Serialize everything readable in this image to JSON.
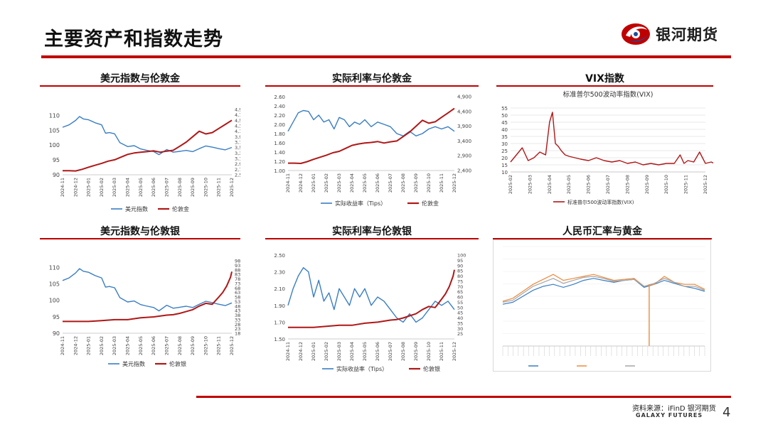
{
  "page": {
    "title": "主要资产和指数走势",
    "logo_text": "银河期货",
    "source": "资料来源：iFinD 银河期货",
    "company_en": "GALAXY FUTURES",
    "page_number": "4"
  },
  "colors": {
    "accent_red": "#c00000",
    "series_blue": "#3a7ec2",
    "series_red": "#b01717",
    "series_orange": "#ec8a3c",
    "series_gray": "#a6a6a6",
    "logo_blue": "#1d4d9c"
  },
  "icons": {
    "logo": "galaxy-futures-logo-icon"
  },
  "chart_data": [
    {
      "id": "c1",
      "type": "line",
      "title": "美元指数与伦敦金",
      "x_ticks": [
        "2024-11",
        "2024-12",
        "2025-01",
        "2025-02",
        "2025-03",
        "2025-04",
        "2025-05",
        "2025-06",
        "2025-07",
        "2025-08",
        "2025-09",
        "2025-10",
        "2025-11",
        "2025-12"
      ],
      "y_left": {
        "range": [
          90,
          112
        ],
        "ticks": [
          "90",
          "95",
          "100",
          "105",
          "110"
        ]
      },
      "y_right": {
        "range": [
          2500,
          4900
        ],
        "ticks": [
          "2,500",
          "2,700",
          "2,900",
          "3,100",
          "3,300",
          "3,500",
          "3,700",
          "3,900",
          "4,100",
          "4,300",
          "4,500",
          "4,700",
          "4,900"
        ]
      },
      "series": [
        {
          "name": "美元指数",
          "axis": "left",
          "color": "#3a7ec2",
          "x": [
            0,
            0.5,
            1,
            1.3,
            1.6,
            2,
            2.5,
            3,
            3.3,
            3.6,
            4,
            4.4,
            5,
            5.5,
            6,
            6.4,
            7,
            7.4,
            8,
            8.5,
            9,
            9.5,
            10,
            10.5,
            11,
            11.5,
            12,
            12.5,
            13
          ],
          "values": [
            106,
            106.8,
            108.3,
            109.6,
            108.8,
            108.5,
            107.5,
            106.8,
            104,
            104.2,
            103.8,
            100.8,
            99.5,
            99.8,
            98.7,
            98.3,
            97.8,
            96.8,
            98.5,
            97.6,
            97.9,
            98.2,
            97.8,
            98.8,
            99.7,
            99.3,
            98.8,
            98.4,
            99.2
          ]
        },
        {
          "name": "伦敦金",
          "axis": "right",
          "color": "#b01717",
          "x": [
            0,
            0.5,
            1,
            1.5,
            2,
            2.5,
            3,
            3.5,
            4,
            4.5,
            5,
            5.5,
            6,
            6.5,
            7,
            7.5,
            8,
            8.5,
            9,
            9.5,
            10,
            10.5,
            11,
            11.5,
            12,
            12.5,
            13
          ],
          "values": [
            2650,
            2650,
            2640,
            2700,
            2780,
            2850,
            2920,
            3000,
            3050,
            3150,
            3250,
            3300,
            3330,
            3350,
            3380,
            3330,
            3370,
            3400,
            3550,
            3700,
            3900,
            4100,
            4000,
            4050,
            4200,
            4350,
            4500
          ]
        }
      ],
      "legend": "bottom"
    },
    {
      "id": "c2",
      "type": "line",
      "title": "实际利率与伦敦金",
      "x_ticks": [
        "2024-11",
        "2024-12",
        "2025-01",
        "2025-02",
        "2025-03",
        "2025-04",
        "2025-05",
        "2025-06",
        "2025-07",
        "2025-08",
        "2025-09",
        "2025-10",
        "2025-11",
        "2025-12"
      ],
      "y_left": {
        "range": [
          1.0,
          2.6
        ],
        "ticks": [
          "1.00",
          "1.20",
          "1.40",
          "1.60",
          "1.80",
          "2.00",
          "2.20",
          "2.40",
          "2.60"
        ]
      },
      "y_right": {
        "range": [
          2400,
          4900
        ],
        "ticks": [
          "2,400",
          "2,900",
          "3,400",
          "3,900",
          "4,400",
          "4,900"
        ]
      },
      "series": [
        {
          "name": "实际收益率（Tips）",
          "axis": "left",
          "color": "#3a7ec2",
          "x": [
            0,
            0.4,
            0.8,
            1.2,
            1.6,
            2,
            2.4,
            2.8,
            3.2,
            3.6,
            4,
            4.4,
            4.8,
            5.2,
            5.6,
            6,
            6.5,
            7,
            7.5,
            8,
            8.5,
            9,
            9.5,
            10,
            10.5,
            11,
            11.5,
            12,
            12.5,
            13
          ],
          "values": [
            1.85,
            2.05,
            2.25,
            2.3,
            2.28,
            2.1,
            2.2,
            2.05,
            2.1,
            1.9,
            2.15,
            2.1,
            1.95,
            2.05,
            2.0,
            2.1,
            1.95,
            2.05,
            2.0,
            1.95,
            1.8,
            1.75,
            1.85,
            1.75,
            1.8,
            1.9,
            1.95,
            1.9,
            1.95,
            1.85
          ]
        },
        {
          "name": "伦敦金",
          "axis": "right",
          "color": "#b01717",
          "x": [
            0,
            0.5,
            1,
            1.5,
            2,
            2.5,
            3,
            3.5,
            4,
            4.5,
            5,
            5.5,
            6,
            6.5,
            7,
            7.5,
            8,
            8.5,
            9,
            9.5,
            10,
            10.5,
            11,
            11.5,
            12,
            12.5,
            13
          ],
          "values": [
            2650,
            2650,
            2640,
            2700,
            2780,
            2850,
            2920,
            3000,
            3050,
            3150,
            3250,
            3300,
            3330,
            3350,
            3380,
            3330,
            3370,
            3400,
            3550,
            3700,
            3900,
            4100,
            4000,
            4050,
            4200,
            4350,
            4500
          ]
        }
      ],
      "legend": "bottom"
    },
    {
      "id": "c3",
      "type": "line",
      "title": "VIX指数",
      "subtitle": "标准普尔500波动率指数(VIX)",
      "x_ticks": [
        "2025-02",
        "2025-03",
        "2025-04",
        "2025-05",
        "2025-06",
        "2025-07",
        "2025-08",
        "2025-09",
        "2025-10",
        "2025-11",
        "2025-12"
      ],
      "y_left": {
        "range": [
          10,
          55
        ],
        "ticks": [
          "10",
          "15",
          "20",
          "25",
          "30",
          "35",
          "40",
          "45",
          "50",
          "55"
        ]
      },
      "series": [
        {
          "name": "标准普尔500波动率指数(VIX)",
          "axis": "left",
          "color": "#b01717",
          "x": [
            0,
            0.3,
            0.6,
            0.9,
            1.2,
            1.5,
            1.8,
            2.0,
            2.15,
            2.3,
            2.45,
            2.6,
            2.8,
            3.0,
            3.3,
            3.6,
            4.0,
            4.4,
            4.8,
            5.2,
            5.6,
            6.0,
            6.4,
            6.8,
            7.2,
            7.6,
            8.0,
            8.4,
            8.7,
            8.9,
            9.1,
            9.4,
            9.7,
            10.0,
            10.3,
            10.6,
            11.0
          ],
          "values": [
            17,
            22,
            27,
            18,
            20,
            24,
            22,
            45,
            52,
            30,
            28,
            25,
            22,
            21,
            20,
            19,
            18,
            20,
            18,
            17,
            18,
            16,
            17,
            15,
            16,
            15,
            16,
            16,
            22,
            16,
            18,
            17,
            24,
            16,
            17,
            15,
            16
          ]
        }
      ],
      "legend": "bottom"
    },
    {
      "id": "c4",
      "type": "line",
      "title": "美元指数与伦敦银",
      "x_ticks": [
        "2024-11",
        "2024-12",
        "2025-01",
        "2025-02",
        "2025-03",
        "2025-04",
        "2025-05",
        "2025-06",
        "2025-07",
        "2025-08",
        "2025-09",
        "2025-10",
        "2025-11",
        "2025-12"
      ],
      "y_left": {
        "range": [
          90,
          112
        ],
        "ticks": [
          "90",
          "95",
          "100",
          "105",
          "110"
        ]
      },
      "y_right": {
        "range": [
          18,
          98
        ],
        "ticks": [
          "18",
          "23",
          "28",
          "33",
          "38",
          "43",
          "48",
          "53",
          "58",
          "63",
          "68",
          "73",
          "78",
          "83",
          "88",
          "93",
          "98"
        ]
      },
      "series": [
        {
          "name": "美元指数",
          "axis": "left",
          "color": "#3a7ec2",
          "x": [
            0,
            0.5,
            1,
            1.3,
            1.6,
            2,
            2.5,
            3,
            3.3,
            3.6,
            4,
            4.4,
            5,
            5.5,
            6,
            6.4,
            7,
            7.4,
            8,
            8.5,
            9,
            9.5,
            10,
            10.5,
            11,
            11.5,
            12,
            12.5,
            13
          ],
          "values": [
            106,
            106.8,
            108.3,
            109.6,
            108.8,
            108.5,
            107.5,
            106.8,
            104,
            104.2,
            103.8,
            100.8,
            99.5,
            99.8,
            98.7,
            98.3,
            97.8,
            96.8,
            98.5,
            97.6,
            97.9,
            98.2,
            97.8,
            98.8,
            99.7,
            99.3,
            98.8,
            98.4,
            99.2
          ]
        },
        {
          "name": "伦敦银",
          "axis": "right",
          "color": "#b01717",
          "x": [
            0,
            1,
            2,
            3,
            4,
            5,
            6,
            7,
            8,
            8.5,
            9,
            9.5,
            10,
            10.5,
            11,
            11.5,
            12,
            12.3,
            12.6,
            12.9,
            13
          ],
          "values": [
            31,
            31,
            31,
            32,
            33,
            33,
            35,
            36,
            38,
            38.5,
            40,
            42,
            44,
            48,
            51,
            50,
            58,
            63,
            70,
            80,
            86
          ]
        }
      ],
      "legend": "bottom"
    },
    {
      "id": "c5",
      "type": "line",
      "title": "实际利率与伦敦银",
      "x_ticks": [
        "2024-11",
        "2024-12",
        "2025-01",
        "2025-02",
        "2025-03",
        "2025-04",
        "2025-05",
        "2025-06",
        "2025-07",
        "2025-08",
        "2025-09",
        "2025-10",
        "2025-11",
        "2025-12"
      ],
      "y_left": {
        "range": [
          1.5,
          2.5
        ],
        "ticks": [
          "1.50",
          "1.70",
          "1.90",
          "2.10",
          "2.30",
          "2.50"
        ]
      },
      "y_right": {
        "range": [
          20,
          100
        ],
        "ticks": [
          "25",
          "30",
          "35",
          "40",
          "45",
          "50",
          "55",
          "60",
          "65",
          "70",
          "75",
          "80",
          "85",
          "90",
          "95",
          "100"
        ]
      },
      "series": [
        {
          "name": "实际收益率（Tips）",
          "axis": "left",
          "color": "#3a7ec2",
          "x": [
            0,
            0.4,
            0.8,
            1.2,
            1.6,
            2,
            2.4,
            2.8,
            3.2,
            3.6,
            4,
            4.4,
            4.8,
            5.2,
            5.6,
            6,
            6.5,
            7,
            7.5,
            8,
            8.5,
            9,
            9.5,
            10,
            10.5,
            11,
            11.5,
            12,
            12.5,
            13
          ],
          "values": [
            1.9,
            2.1,
            2.25,
            2.35,
            2.3,
            2.0,
            2.2,
            1.95,
            2.05,
            1.85,
            2.1,
            2.0,
            1.9,
            2.1,
            2.0,
            2.1,
            1.9,
            2.0,
            1.95,
            1.85,
            1.75,
            1.7,
            1.8,
            1.7,
            1.75,
            1.85,
            1.95,
            1.9,
            1.95,
            1.85
          ]
        },
        {
          "name": "伦敦银",
          "axis": "right",
          "color": "#b01717",
          "x": [
            0,
            1,
            2,
            3,
            4,
            5,
            6,
            7,
            8,
            8.5,
            9,
            9.5,
            10,
            10.5,
            11,
            11.5,
            12,
            12.3,
            12.6,
            12.9,
            13
          ],
          "values": [
            31,
            31,
            31,
            32,
            33,
            33,
            35,
            36,
            38,
            38.5,
            40,
            42,
            44,
            48,
            51,
            50,
            58,
            63,
            70,
            80,
            86
          ]
        }
      ],
      "legend": "bottom"
    },
    {
      "id": "c6",
      "type": "line",
      "title": "人民币汇率与黄金",
      "series": [
        {
          "color": "#3a7ec2",
          "x": [
            0,
            1,
            2,
            3,
            4,
            5,
            6,
            7,
            8,
            9,
            10,
            11,
            12,
            13,
            14,
            15,
            16,
            17,
            18,
            19,
            20
          ],
          "values": [
            0.42,
            0.44,
            0.5,
            0.56,
            0.6,
            0.62,
            0.59,
            0.62,
            0.66,
            0.68,
            0.66,
            0.64,
            0.66,
            0.67,
            0.59,
            0.62,
            0.66,
            0.63,
            0.6,
            0.58,
            0.55
          ]
        },
        {
          "color": "#ec8a3c",
          "x": [
            0,
            1,
            2,
            3,
            4,
            5,
            6,
            7,
            8,
            9,
            10,
            11,
            12,
            13,
            14,
            15,
            16,
            17,
            18,
            19,
            20
          ],
          "values": [
            0.45,
            0.48,
            0.55,
            0.62,
            0.67,
            0.72,
            0.66,
            0.68,
            0.7,
            0.72,
            0.69,
            0.66,
            0.67,
            0.68,
            0.6,
            0.62,
            0.7,
            0.64,
            0.62,
            0.62,
            0.57
          ]
        },
        {
          "color": "#a6a6a6",
          "x": [
            0,
            1,
            2,
            3,
            4,
            5,
            6,
            7,
            8,
            9,
            10,
            11,
            12,
            13,
            14,
            15,
            16,
            17,
            18,
            19,
            20
          ],
          "values": [
            0.44,
            0.46,
            0.53,
            0.6,
            0.64,
            0.68,
            0.63,
            0.66,
            0.69,
            0.7,
            0.68,
            0.65,
            0.66,
            0.67,
            0.6,
            0.63,
            0.68,
            0.64,
            0.6,
            0.6,
            0.56
          ]
        }
      ],
      "legend": "bottom"
    }
  ]
}
